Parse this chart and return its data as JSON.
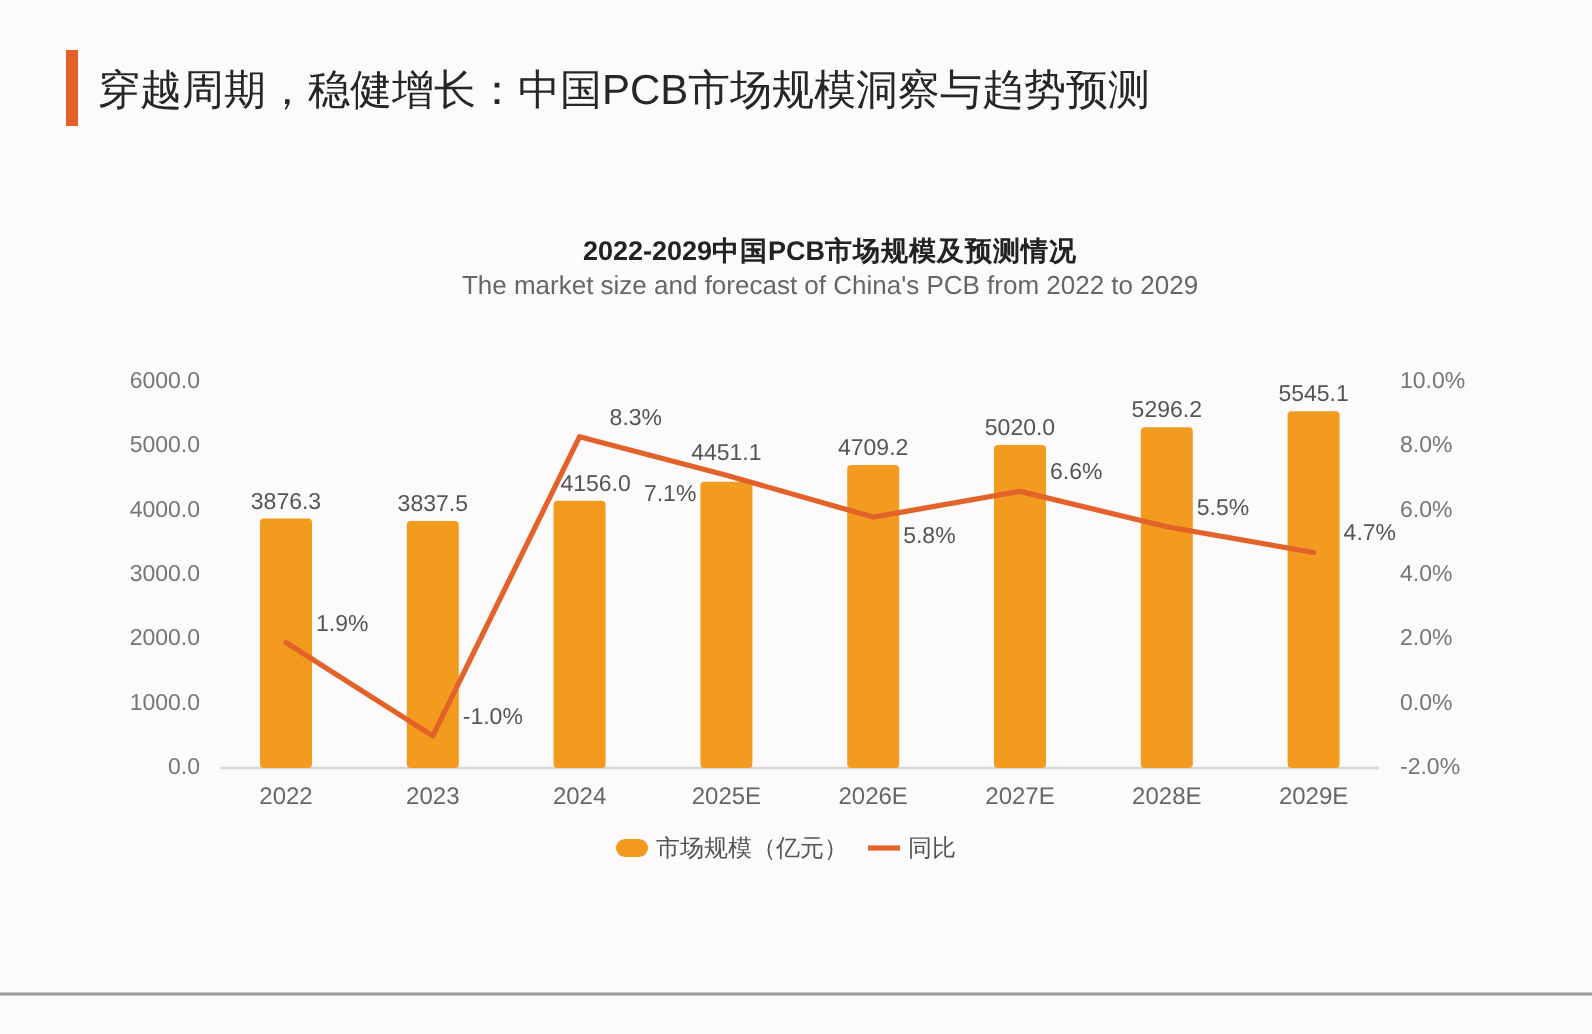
{
  "chart_data": {
    "type": "bar",
    "title": "2022-2029中国PCB市场规模及预测情况",
    "subtitle": "The market size and forecast of China's PCB from 2022 to 2029",
    "annotations": [
      "穿越周期，稳健增长：中国PCB市场规模洞察与趋势预测"
    ],
    "categories": [
      "2022",
      "2023",
      "2024",
      "2025E",
      "2026E",
      "2027E",
      "2028E",
      "2029E"
    ],
    "series": [
      {
        "name": "市场规模（亿元）",
        "color": "#f39b1f",
        "values": [
          3876.3,
          3837.5,
          4156.0,
          4451.1,
          4709.2,
          5020.0,
          5296.2,
          5545.1
        ],
        "value_labels": [
          "3876.3",
          "3837.5",
          "4156.0",
          "4451.1",
          "4709.2",
          "5020.0",
          "5296.2",
          "5545.1"
        ]
      },
      {
        "name": "同比",
        "type": "line",
        "axis": "y2",
        "color": "#e2622a",
        "values": [
          1.9,
          -1.0,
          8.3,
          7.1,
          5.8,
          6.6,
          5.5,
          4.7
        ],
        "value_labels": [
          "1.9%",
          "-1.0%",
          "8.3%",
          "7.1%",
          "5.8%",
          "6.6%",
          "5.5%",
          "4.7%"
        ]
      }
    ],
    "ylim": [
      0,
      6000
    ],
    "yticks": [
      {
        "value": 0,
        "label": "0.0"
      },
      {
        "value": 1000,
        "label": "1000.0"
      },
      {
        "value": 2000,
        "label": "2000.0"
      },
      {
        "value": 3000,
        "label": "3000.0"
      },
      {
        "value": 4000,
        "label": "4000.0"
      },
      {
        "value": 5000,
        "label": "5000.0"
      },
      {
        "value": 6000,
        "label": "6000.0"
      }
    ],
    "y2lim": [
      -2,
      10
    ],
    "y2ticks": [
      {
        "value": -2,
        "label": "-2.0%"
      },
      {
        "value": 0,
        "label": "0.0%"
      },
      {
        "value": 2,
        "label": "2.0%"
      },
      {
        "value": 4,
        "label": "4.0%"
      },
      {
        "value": 6,
        "label": "6.0%"
      },
      {
        "value": 8,
        "label": "8.0%"
      },
      {
        "value": 10,
        "label": "10.0%"
      }
    ],
    "legend": "bottom"
  }
}
